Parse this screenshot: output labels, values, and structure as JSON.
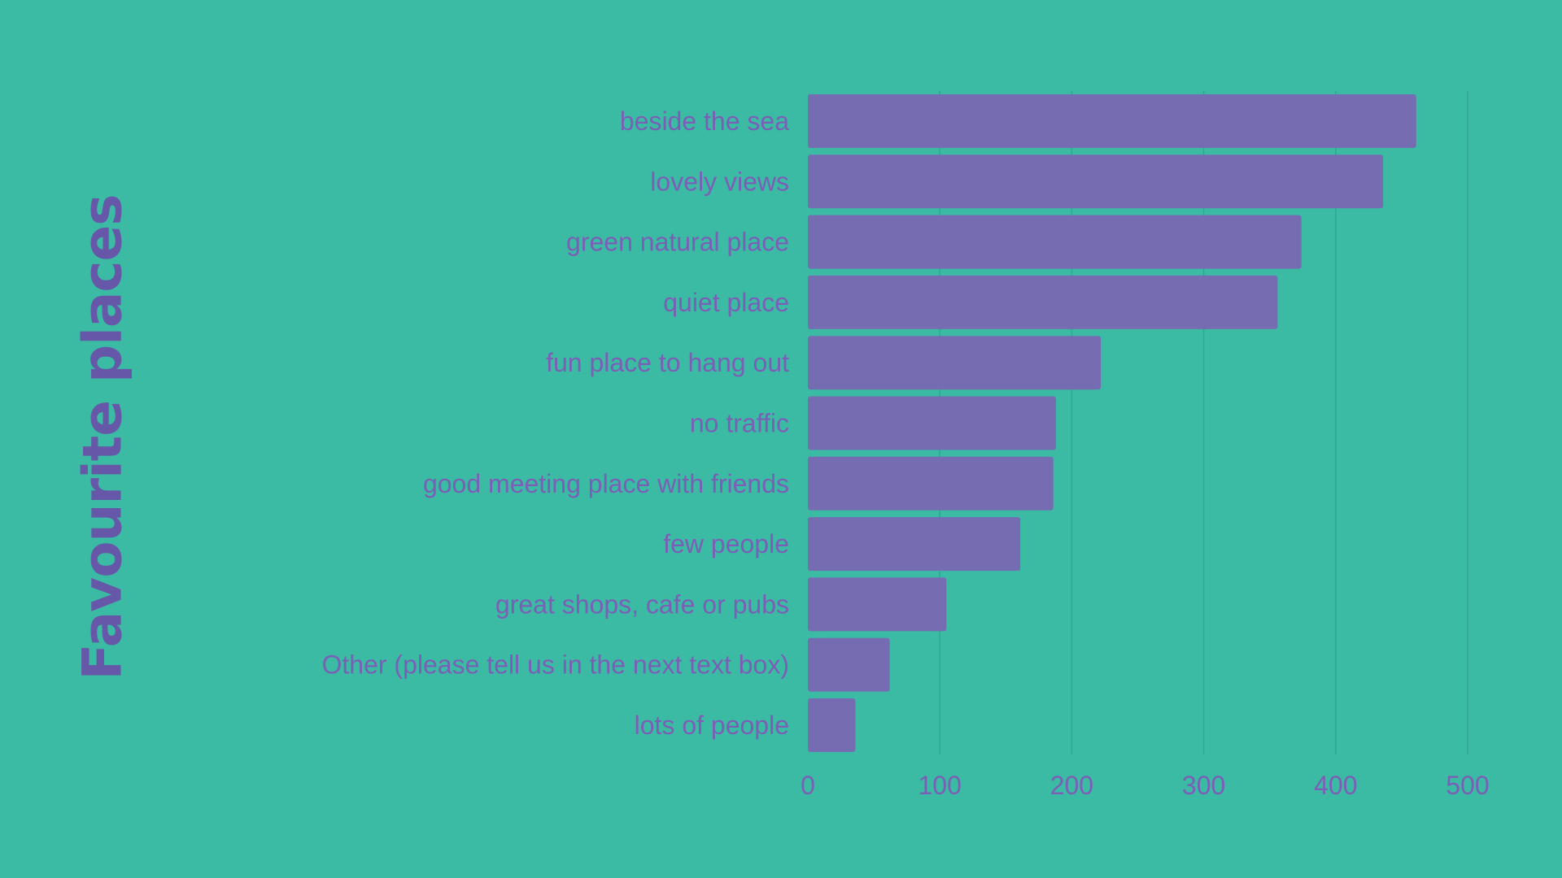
{
  "colors": {
    "background": "#3bbba4",
    "bar": "#766cb1",
    "text": "#7b5fb6",
    "title": "#6757a8",
    "grid": "#33a692"
  },
  "chart_data": {
    "type": "bar",
    "orientation": "horizontal",
    "title": "Favourite places",
    "xlabel": "",
    "ylabel": "",
    "xlim": [
      0,
      500
    ],
    "ticks": [
      0,
      100,
      200,
      300,
      400,
      500
    ],
    "grid": true,
    "categories": [
      "beside the sea",
      "lovely views",
      "green natural place",
      "quiet place",
      "fun place to hang out",
      "no traffic",
      "good meeting place with friends",
      "few people",
      "great shops, cafe or pubs",
      "Other (please tell us in the next text box)",
      "lots of people"
    ],
    "values": [
      461,
      436,
      374,
      356,
      222,
      188,
      186,
      161,
      105,
      62,
      36
    ]
  }
}
